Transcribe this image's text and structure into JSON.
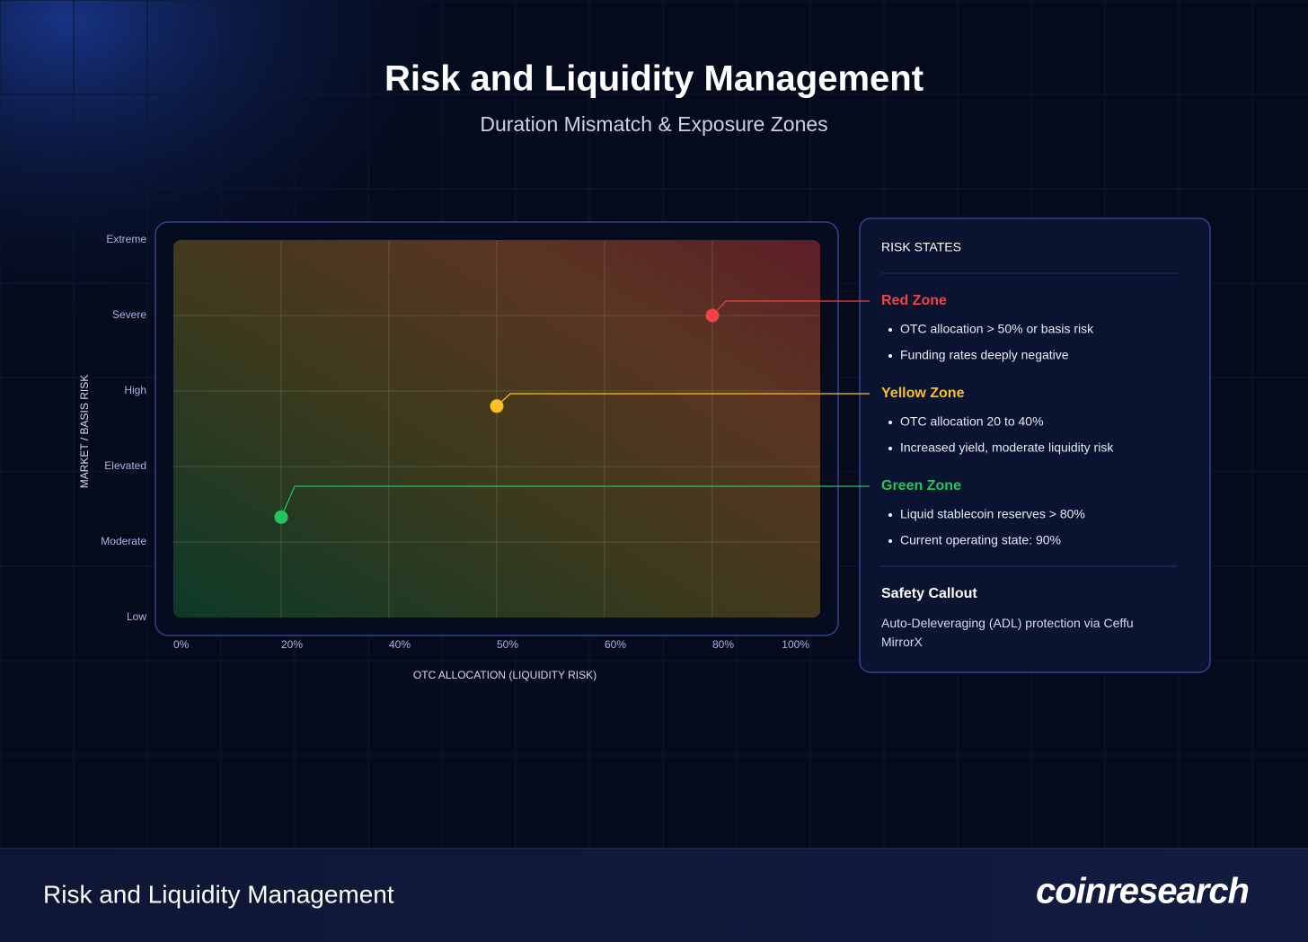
{
  "chart_data": {
    "type": "scatter",
    "title": "Risk and Liquidity Management",
    "subtitle": "Duration Mismatch & Exposure Zones",
    "x_label": "OTC ALLOCATION (LIQUIDITY RISK)",
    "y_label": "MARKET / BASIS RISK",
    "xlim": [
      0,
      120
    ],
    "xticks": [
      {
        "value": 0,
        "label": "0%"
      },
      {
        "value": 20,
        "label": "20%"
      },
      {
        "value": 40,
        "label": "40%"
      },
      {
        "value": 60,
        "label": "50%"
      },
      {
        "value": 80,
        "label": "60%"
      },
      {
        "value": 100,
        "label": "80%"
      },
      {
        "value": 120,
        "label": "100%"
      }
    ],
    "ylim": [
      0,
      5
    ],
    "yticks": [
      {
        "value": 0,
        "label": "Low"
      },
      {
        "value": 1,
        "label": "Moderate"
      },
      {
        "value": 2,
        "label": "Elevated"
      },
      {
        "value": 3,
        "label": "High"
      },
      {
        "value": 4,
        "label": "Severe"
      },
      {
        "value": 5,
        "label": "Extreme"
      }
    ],
    "grid": true,
    "legend_title": "RISK STATES",
    "series": [
      {
        "name": "Red Zone",
        "color": "#ef4444",
        "x": [
          100
        ],
        "values": [
          4
        ],
        "notes": [
          "OTC allocation > 50% or basis risk",
          "Funding rates deeply negative"
        ]
      },
      {
        "name": "Yellow Zone",
        "color": "#fbbf24",
        "x": [
          60
        ],
        "values": [
          2.8
        ],
        "notes": [
          "OTC allocation 20 to 40%",
          "Increased yield, moderate liquidity risk"
        ]
      },
      {
        "name": "Green Zone",
        "color": "#22c55e",
        "x": [
          20
        ],
        "values": [
          1.33
        ],
        "notes": [
          "Liquid stablecoin reserves > 80%",
          "Current operating state: 90%"
        ]
      }
    ],
    "callout": {
      "title": "Safety Callout",
      "text": "Auto-Deleveraging (ADL) protection via Ceffu MirrorX"
    }
  },
  "footer": {
    "title": "Risk and Liquidity Management",
    "brand": "coinresearch"
  }
}
